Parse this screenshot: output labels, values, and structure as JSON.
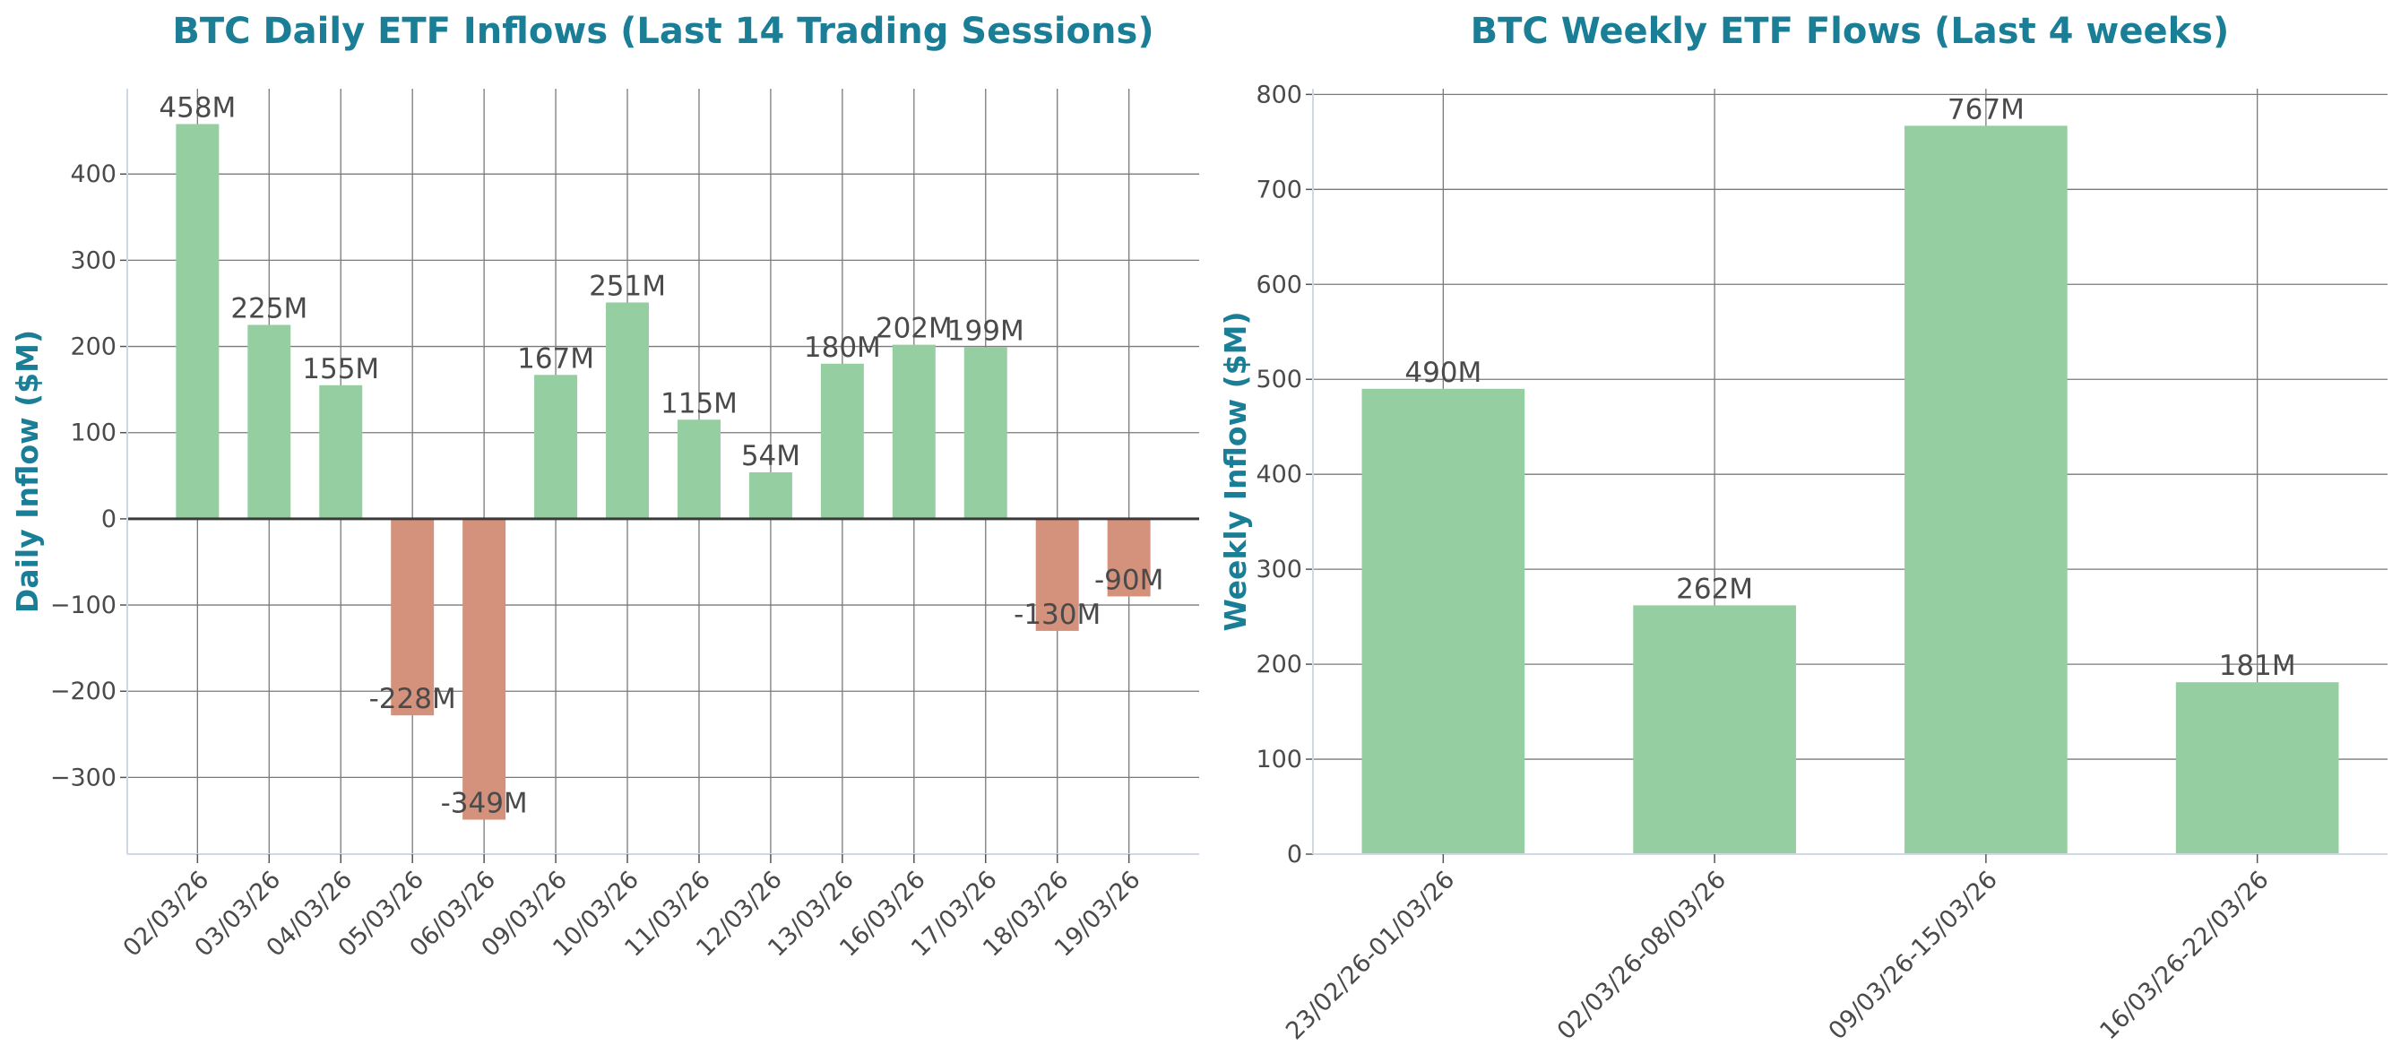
{
  "colors": {
    "positive": "#95cea0",
    "negative": "#d4917b",
    "title": "#1a7f96",
    "text": "#4a4a4a",
    "grid": "#7a7a7a"
  },
  "chart_data": [
    {
      "type": "bar",
      "title": "BTC Daily ETF Inflows (Last 14 Trading Sessions)",
      "xlabel": "",
      "ylabel": "Daily Inflow ($M)",
      "categories": [
        "02/03/26",
        "03/03/26",
        "04/03/26",
        "05/03/26",
        "06/03/26",
        "09/03/26",
        "10/03/26",
        "11/03/26",
        "12/03/26",
        "13/03/26",
        "16/03/26",
        "17/03/26",
        "18/03/26",
        "19/03/26"
      ],
      "values": [
        458,
        225,
        155,
        -228,
        -349,
        167,
        251,
        115,
        54,
        180,
        202,
        199,
        -130,
        -90
      ],
      "data_labels": [
        "458M",
        "225M",
        "155M",
        "-228M",
        "-349M",
        "167M",
        "251M",
        "115M",
        "54M",
        "180M",
        "202M",
        "199M",
        "-130M",
        "-90M"
      ],
      "yticks": [
        -300,
        -200,
        -100,
        0,
        100,
        200,
        300,
        400
      ],
      "ytick_labels": [
        "−300",
        "−200",
        "−100",
        "0",
        "100",
        "200",
        "300",
        "400"
      ],
      "ylim": [
        -389,
        499
      ],
      "grid": true,
      "zero_line": true
    },
    {
      "type": "bar",
      "title": "BTC Weekly ETF Flows (Last 4 weeks)",
      "xlabel": "",
      "ylabel": "Weekly Inflow ($M)",
      "categories": [
        "23/02/26-01/03/26",
        "02/03/26-08/03/26",
        "09/03/26-15/03/26",
        "16/03/26-22/03/26"
      ],
      "values": [
        490,
        262,
        767,
        181
      ],
      "data_labels": [
        "490M",
        "262M",
        "767M",
        "181M"
      ],
      "yticks": [
        0,
        100,
        200,
        300,
        400,
        500,
        600,
        700,
        800
      ],
      "ytick_labels": [
        "0",
        "100",
        "200",
        "300",
        "400",
        "500",
        "600",
        "700",
        "800"
      ],
      "ylim": [
        0,
        806
      ],
      "grid": true,
      "zero_line": false
    }
  ]
}
